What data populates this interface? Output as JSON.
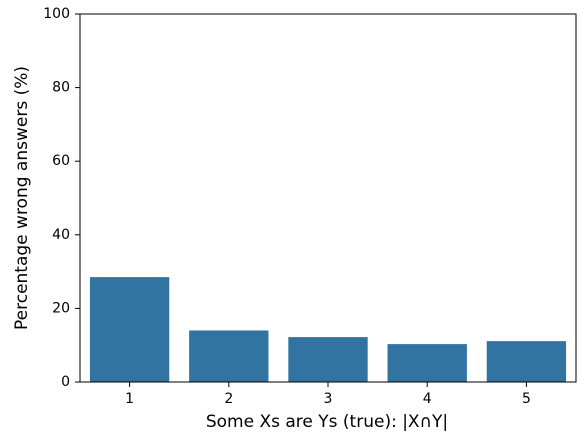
{
  "chart_data": {
    "type": "bar",
    "x_label": "Some Xs are Ys (true): |X∩Y|",
    "y_label": "Percentage wrong answers (%)",
    "categories": [
      "1",
      "2",
      "3",
      "4",
      "5"
    ],
    "values": [
      28.5,
      14.0,
      12.2,
      10.3,
      11.1
    ],
    "color": "#3274a1",
    "ylim": [
      0,
      100
    ],
    "yticks": [
      0,
      20,
      40,
      60,
      80,
      100
    ],
    "grid": false
  }
}
